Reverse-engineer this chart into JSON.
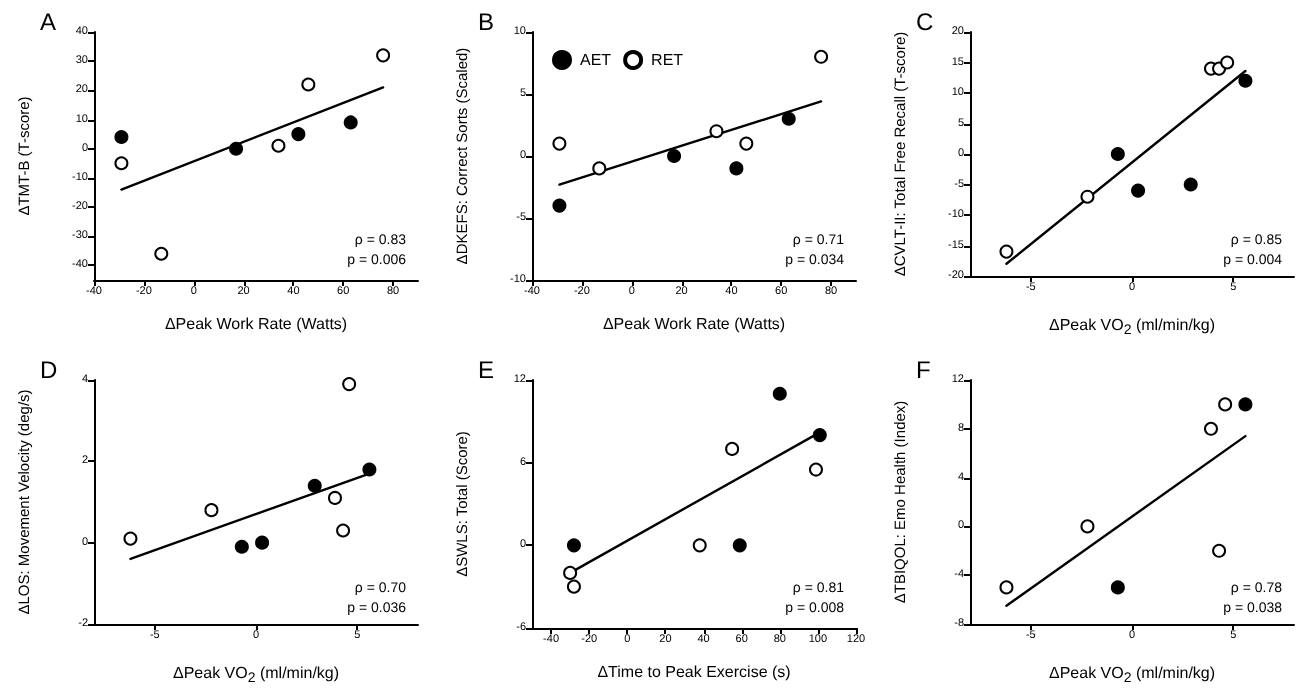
{
  "chart_data": [
    {
      "type": "scatter",
      "title": "A",
      "xlabel": "ΔPeak Work Rate (Watts)",
      "ylabel": "ΔTMT-B (T-score)",
      "xlim": [
        -40,
        90
      ],
      "xticks": [
        -40,
        -20,
        0,
        20,
        40,
        60,
        80
      ],
      "ylim": [
        -45,
        40
      ],
      "yticks": [
        -40,
        -30,
        -20,
        -10,
        0,
        10,
        20,
        30,
        40
      ],
      "marker": "circle",
      "grid": false,
      "legend": false,
      "annotations": [
        "ρ = 0.83",
        "p = 0.006"
      ],
      "series": [
        {
          "color": "#000000",
          "x": [
            -29,
            17,
            42,
            63
          ],
          "values": [
            4,
            0,
            5,
            9
          ]
        },
        {
          "color": "#ffffff",
          "x": [
            -29,
            -13,
            34,
            46,
            76
          ],
          "values": [
            -5,
            -36,
            1,
            22,
            32
          ]
        },
        {
          "type": "line",
          "marker": "none",
          "color": "#000000",
          "x": [
            -29,
            76
          ],
          "values": [
            -14,
            21
          ]
        }
      ]
    },
    {
      "type": "scatter",
      "title": "B",
      "xlabel": "ΔPeak Work Rate (Watts)",
      "ylabel": "ΔDKEFS: Correct Sorts (Scaled)",
      "xlim": [
        -40,
        90
      ],
      "xticks": [
        -40,
        -20,
        0,
        20,
        40,
        60,
        80
      ],
      "ylim": [
        -10,
        10
      ],
      "yticks": [
        -10,
        -5,
        0,
        5,
        10
      ],
      "marker": "circle",
      "grid": false,
      "legend": "top left",
      "annotations": [
        "ρ = 0.71",
        "p = 0.034"
      ],
      "series": [
        {
          "name": "AET",
          "color": "#000000",
          "x": [
            -29,
            17,
            42,
            63
          ],
          "values": [
            -4,
            0,
            -1,
            3
          ]
        },
        {
          "name": "RET",
          "color": "#ffffff",
          "x": [
            -29,
            -13,
            34,
            46,
            76
          ],
          "values": [
            1,
            -1,
            2,
            1,
            8
          ]
        },
        {
          "type": "line",
          "marker": "none",
          "color": "#000000",
          "x": [
            -29,
            76
          ],
          "values": [
            -2.3,
            4.4
          ]
        }
      ]
    },
    {
      "type": "scatter",
      "title": "C",
      "xlabel": "ΔPeak VO$_{2}$ (ml/min/kg)",
      "ylabel": "ΔCVLT-II: Total Free Recall (T-score)",
      "xlim": [
        -8,
        8
      ],
      "xticks": [
        -5,
        0,
        5
      ],
      "ylim": [
        -20,
        20
      ],
      "yticks": [
        -20,
        -15,
        -10,
        -5,
        0,
        5,
        10,
        15,
        20
      ],
      "marker": "circle",
      "grid": false,
      "legend": false,
      "annotations": [
        "ρ = 0.85",
        "p = 0.004"
      ],
      "series": [
        {
          "color": "#000000",
          "x": [
            -0.7,
            0.3,
            2.9,
            5.6
          ],
          "values": [
            0,
            -6,
            -5,
            12
          ]
        },
        {
          "color": "#ffffff",
          "x": [
            -6.2,
            -2.2,
            3.9,
            4.3,
            4.7
          ],
          "values": [
            -16,
            -7,
            14,
            14,
            15
          ]
        },
        {
          "type": "line",
          "marker": "none",
          "color": "#000000",
          "x": [
            -6.2,
            5.6
          ],
          "values": [
            -18,
            13.6
          ]
        }
      ]
    },
    {
      "type": "scatter",
      "title": "D",
      "xlabel": "ΔPeak VO$_{2}$ (ml/min/kg)",
      "ylabel": "ΔLOS: Movement Velocity (deg/s)",
      "xlim": [
        -8,
        8
      ],
      "xticks": [
        -5,
        0,
        5
      ],
      "ylim": [
        -2,
        4
      ],
      "yticks": [
        -2,
        0,
        2,
        4
      ],
      "marker": "circle",
      "grid": false,
      "legend": false,
      "annotations": [
        "ρ = 0.70",
        "p = 0.036"
      ],
      "series": [
        {
          "color": "#000000",
          "x": [
            -0.7,
            0.3,
            2.9,
            5.6
          ],
          "values": [
            -0.1,
            0,
            1.4,
            1.8
          ]
        },
        {
          "color": "#ffffff",
          "x": [
            -6.2,
            -2.2,
            3.9,
            4.3,
            4.6
          ],
          "values": [
            0.1,
            0.8,
            1.1,
            0.3,
            3.9
          ]
        },
        {
          "type": "line",
          "marker": "none",
          "color": "#000000",
          "x": [
            -6.2,
            5.6
          ],
          "values": [
            -0.4,
            1.7
          ]
        }
      ]
    },
    {
      "type": "scatter",
      "title": "E",
      "xlabel": "ΔTime to Peak Exercise (s)",
      "ylabel": "ΔSWLS: Total (Score)",
      "xlim": [
        -50,
        120
      ],
      "xticks": [
        -40,
        -20,
        0,
        20,
        40,
        60,
        80,
        100,
        120
      ],
      "ylim": [
        -6,
        12
      ],
      "yticks": [
        -6,
        0,
        6,
        12
      ],
      "marker": "circle",
      "grid": false,
      "legend": false,
      "annotations": [
        "ρ = 0.81",
        "p = 0.008"
      ],
      "series": [
        {
          "color": "#000000",
          "x": [
            -28,
            59,
            80,
            101
          ],
          "values": [
            0,
            0,
            11,
            8
          ]
        },
        {
          "color": "#ffffff",
          "x": [
            -30,
            -28,
            38,
            55,
            99
          ],
          "values": [
            -2,
            -3,
            0,
            7,
            5.5
          ]
        },
        {
          "type": "line",
          "marker": "none",
          "color": "#000000",
          "x": [
            -30,
            101
          ],
          "values": [
            -2,
            8.2
          ]
        }
      ]
    },
    {
      "type": "scatter",
      "title": "F",
      "xlabel": "ΔPeak VO$_{2}$ (ml/min/kg)",
      "ylabel": "ΔTBIQOL: Emo Health (Index)",
      "xlim": [
        -8,
        8
      ],
      "xticks": [
        -5,
        0,
        5
      ],
      "ylim": [
        -8,
        12
      ],
      "yticks": [
        -8,
        -4,
        0,
        4,
        8,
        12
      ],
      "marker": "circle",
      "grid": false,
      "legend": false,
      "annotations": [
        "ρ = 0.78",
        "p = 0.038"
      ],
      "series": [
        {
          "color": "#000000",
          "x": [
            -0.7,
            5.6
          ],
          "values": [
            -5,
            10
          ]
        },
        {
          "color": "#ffffff",
          "x": [
            -6.2,
            -2.2,
            3.9,
            4.3,
            4.6
          ],
          "values": [
            -5,
            0,
            8,
            -2,
            10
          ]
        },
        {
          "type": "line",
          "marker": "none",
          "color": "#000000",
          "x": [
            -6.2,
            5.6
          ],
          "values": [
            -6.5,
            7.4
          ]
        }
      ]
    }
  ]
}
